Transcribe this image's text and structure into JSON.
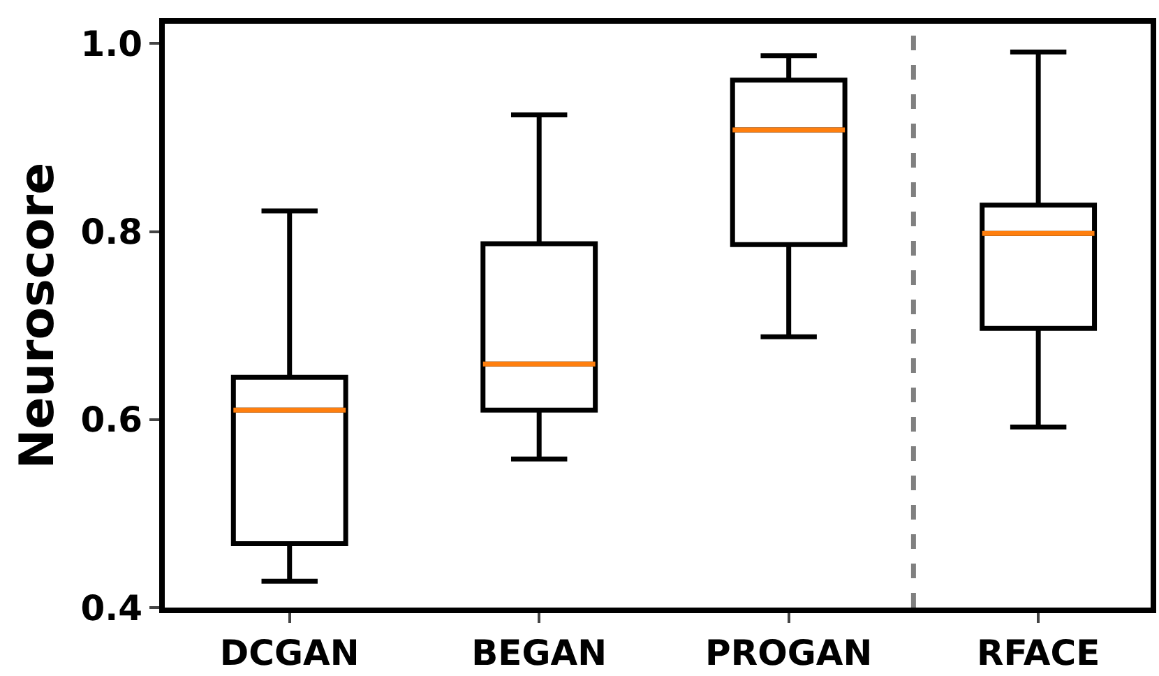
{
  "chart_data": {
    "type": "box",
    "ylabel": "Neuroscore",
    "categories": [
      "DCGAN",
      "BEGAN",
      "PROGAN",
      "RFACE"
    ],
    "boxes": [
      {
        "low": 0.428,
        "q1": 0.468,
        "median": 0.61,
        "q3": 0.645,
        "high": 0.822
      },
      {
        "low": 0.558,
        "q1": 0.61,
        "median": 0.659,
        "q3": 0.787,
        "high": 0.924
      },
      {
        "low": 0.688,
        "q1": 0.786,
        "median": 0.908,
        "q3": 0.961,
        "high": 0.987
      },
      {
        "low": 0.592,
        "q1": 0.697,
        "median": 0.798,
        "q3": 0.828,
        "high": 0.991
      }
    ],
    "color": "#000000",
    "ylim": [
      0.4,
      1.021
    ],
    "yticks": [
      0.4,
      0.6,
      0.8,
      {
        "value": 1.0,
        "label": "1.0"
      }
    ],
    "grid": false,
    "legend": false
  }
}
